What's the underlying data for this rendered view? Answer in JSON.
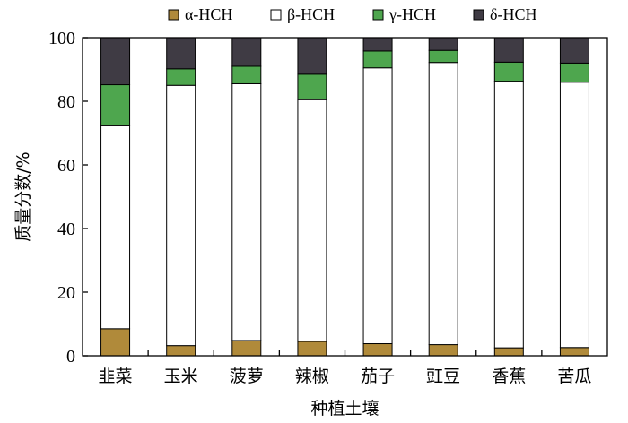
{
  "chart_data": {
    "type": "bar",
    "stacked": true,
    "categories": [
      "韭菜",
      "玉米",
      "菠萝",
      "辣椒",
      "茄子",
      "豇豆",
      "香蕉",
      "苦瓜"
    ],
    "series": [
      {
        "name": "α-HCH",
        "color": "#b08a3a",
        "values": [
          8.5,
          3.2,
          4.8,
          4.5,
          3.8,
          3.5,
          2.5,
          2.6
        ]
      },
      {
        "name": "β-HCH",
        "color": "#ffffff",
        "values": [
          63.8,
          81.8,
          80.7,
          76.0,
          86.7,
          88.7,
          83.8,
          83.4
        ]
      },
      {
        "name": "γ-HCH",
        "color": "#4ea64e",
        "values": [
          12.9,
          5.2,
          5.5,
          8.0,
          5.3,
          3.8,
          6.0,
          6.0
        ]
      },
      {
        "name": "δ-HCH",
        "color": "#3f3b44",
        "values": [
          14.8,
          9.8,
          9.0,
          11.5,
          4.2,
          4.0,
          7.7,
          8.0
        ]
      }
    ],
    "xlabel": "种植土壤",
    "ylabel": "质量分数/%",
    "ylim": [
      0,
      100
    ],
    "yticks": [
      "0",
      "20",
      "40",
      "60",
      "80",
      "100"
    ],
    "grid": false,
    "legend_position": "top"
  }
}
